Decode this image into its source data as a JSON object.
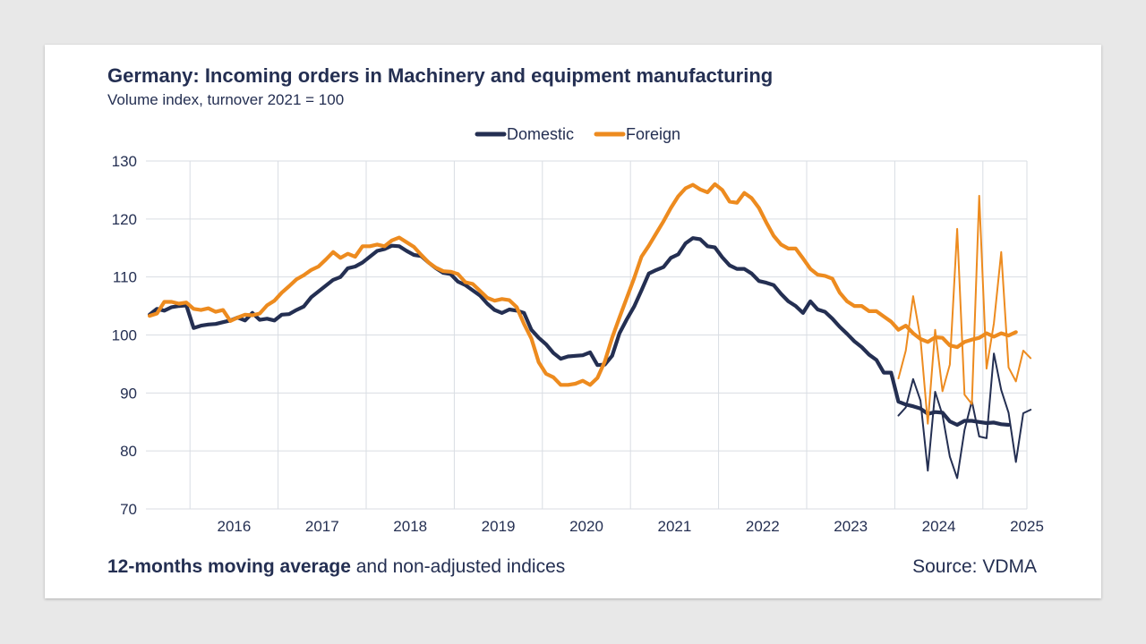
{
  "title": "Germany: Incoming orders in Machinery and equipment manufacturing",
  "subtitle": "Volume index, turnover 2021 = 100",
  "footer": {
    "bold": "12-months moving average",
    "rest": " and non-adjusted indices",
    "source": "Source: VDMA"
  },
  "colors": {
    "domestic": "#242f52",
    "foreign": "#ed8b1f",
    "grid": "#d9dde3"
  },
  "chart_data": {
    "type": "line",
    "title": "Germany: Incoming orders in Machinery and equipment manufacturing",
    "ylabel": "",
    "xlabel": "",
    "ylim": [
      70,
      130
    ],
    "yticks": [
      70,
      80,
      90,
      100,
      110,
      120,
      130
    ],
    "xlim": [
      2015.5,
      2025.5
    ],
    "year_labels": [
      "2016",
      "2017",
      "2018",
      "2019",
      "2020",
      "2021",
      "2022",
      "2023",
      "2024",
      "2025"
    ],
    "grid": true,
    "legend_position": "top-center",
    "series": [
      {
        "name": "Domestic",
        "style": "moving-average",
        "x_start": "2015-07",
        "values": [
          103.5,
          104.5,
          104.2,
          104.8,
          105.0,
          105.1,
          101.2,
          101.6,
          101.8,
          101.9,
          102.2,
          102.5,
          103.0,
          102.5,
          103.8,
          102.6,
          102.8,
          102.5,
          103.5,
          103.6,
          104.3,
          104.9,
          106.5,
          107.5,
          108.5,
          109.5,
          110.0,
          111.5,
          111.8,
          112.5,
          113.5,
          114.5,
          114.8,
          115.4,
          115.3,
          114.5,
          113.8,
          113.6,
          112.5,
          111.5,
          110.7,
          110.5,
          109.2,
          108.6,
          107.7,
          106.8,
          105.4,
          104.3,
          103.8,
          104.4,
          104.2,
          103.8,
          100.9,
          99.5,
          98.4,
          96.9,
          95.9,
          96.3,
          96.4,
          96.5,
          97.0,
          94.8,
          94.9,
          96.4,
          100.3,
          102.7,
          104.9,
          107.7,
          110.6,
          111.2,
          111.7,
          113.3,
          113.9,
          115.8,
          116.7,
          116.5,
          115.3,
          115.1,
          113.4,
          112.0,
          111.4,
          111.4,
          110.6,
          109.3,
          109.0,
          108.6,
          107.1,
          105.8,
          105.0,
          103.8,
          105.8,
          104.4,
          104.0,
          102.8,
          101.4,
          100.2,
          98.9,
          97.9,
          96.6,
          95.7,
          93.5,
          93.5,
          88.5,
          88.0,
          87.7,
          87.3,
          86.4,
          86.7,
          86.6,
          85.1,
          84.5,
          85.2,
          85.2,
          85.0,
          84.8,
          84.9,
          84.6,
          84.5
        ]
      },
      {
        "name": "Foreign",
        "style": "moving-average",
        "x_start": "2015-07",
        "values": [
          103.3,
          103.7,
          105.7,
          105.7,
          105.4,
          105.6,
          104.5,
          104.3,
          104.6,
          104.0,
          104.3,
          102.4,
          103.0,
          103.5,
          103.4,
          103.7,
          105.1,
          105.9,
          107.3,
          108.4,
          109.6,
          110.3,
          111.2,
          111.8,
          113.0,
          114.3,
          113.3,
          114.0,
          113.5,
          115.3,
          115.3,
          115.6,
          115.3,
          116.3,
          116.8,
          116.0,
          115.2,
          113.8,
          112.5,
          111.6,
          111.0,
          110.9,
          110.5,
          109.1,
          108.8,
          107.6,
          106.4,
          105.9,
          106.2,
          106.0,
          104.8,
          101.9,
          99.4,
          95.3,
          93.3,
          92.7,
          91.4,
          91.4,
          91.6,
          92.1,
          91.4,
          92.6,
          95.4,
          99.5,
          103.0,
          106.4,
          109.8,
          113.5,
          115.4,
          117.5,
          119.6,
          121.9,
          123.9,
          125.3,
          125.9,
          125.1,
          124.6,
          126.0,
          125.0,
          123.0,
          122.8,
          124.5,
          123.6,
          121.9,
          119.4,
          117.1,
          115.6,
          114.9,
          114.9,
          113.2,
          111.4,
          110.4,
          110.2,
          109.7,
          107.3,
          105.8,
          105.0,
          105.0,
          104.1,
          104.1,
          103.2,
          102.3,
          100.9,
          101.6,
          100.3,
          99.3,
          98.8,
          99.6,
          99.5,
          98.2,
          97.9,
          98.8,
          99.2,
          99.5,
          100.3,
          99.7,
          100.3,
          99.9,
          100.5
        ]
      },
      {
        "name": "Domestic",
        "style": "non-adjusted",
        "x_start": "2024-01",
        "values": [
          86.1,
          87.5,
          92.4,
          88.7,
          76.6,
          90.2,
          86.2,
          79.0,
          75.3,
          83.6,
          88.6,
          82.5,
          82.2,
          96.8,
          90.5,
          86.6,
          78.1,
          86.5,
          87.1
        ]
      },
      {
        "name": "Foreign",
        "style": "non-adjusted",
        "x_start": "2024-01",
        "values": [
          92.5,
          97.3,
          106.7,
          99.4,
          84.7,
          100.9,
          90.3,
          94.9,
          118.3,
          89.7,
          88.1,
          124.0,
          94.2,
          102.0,
          114.3,
          94.4,
          92.0,
          97.3,
          96.0
        ]
      }
    ]
  }
}
